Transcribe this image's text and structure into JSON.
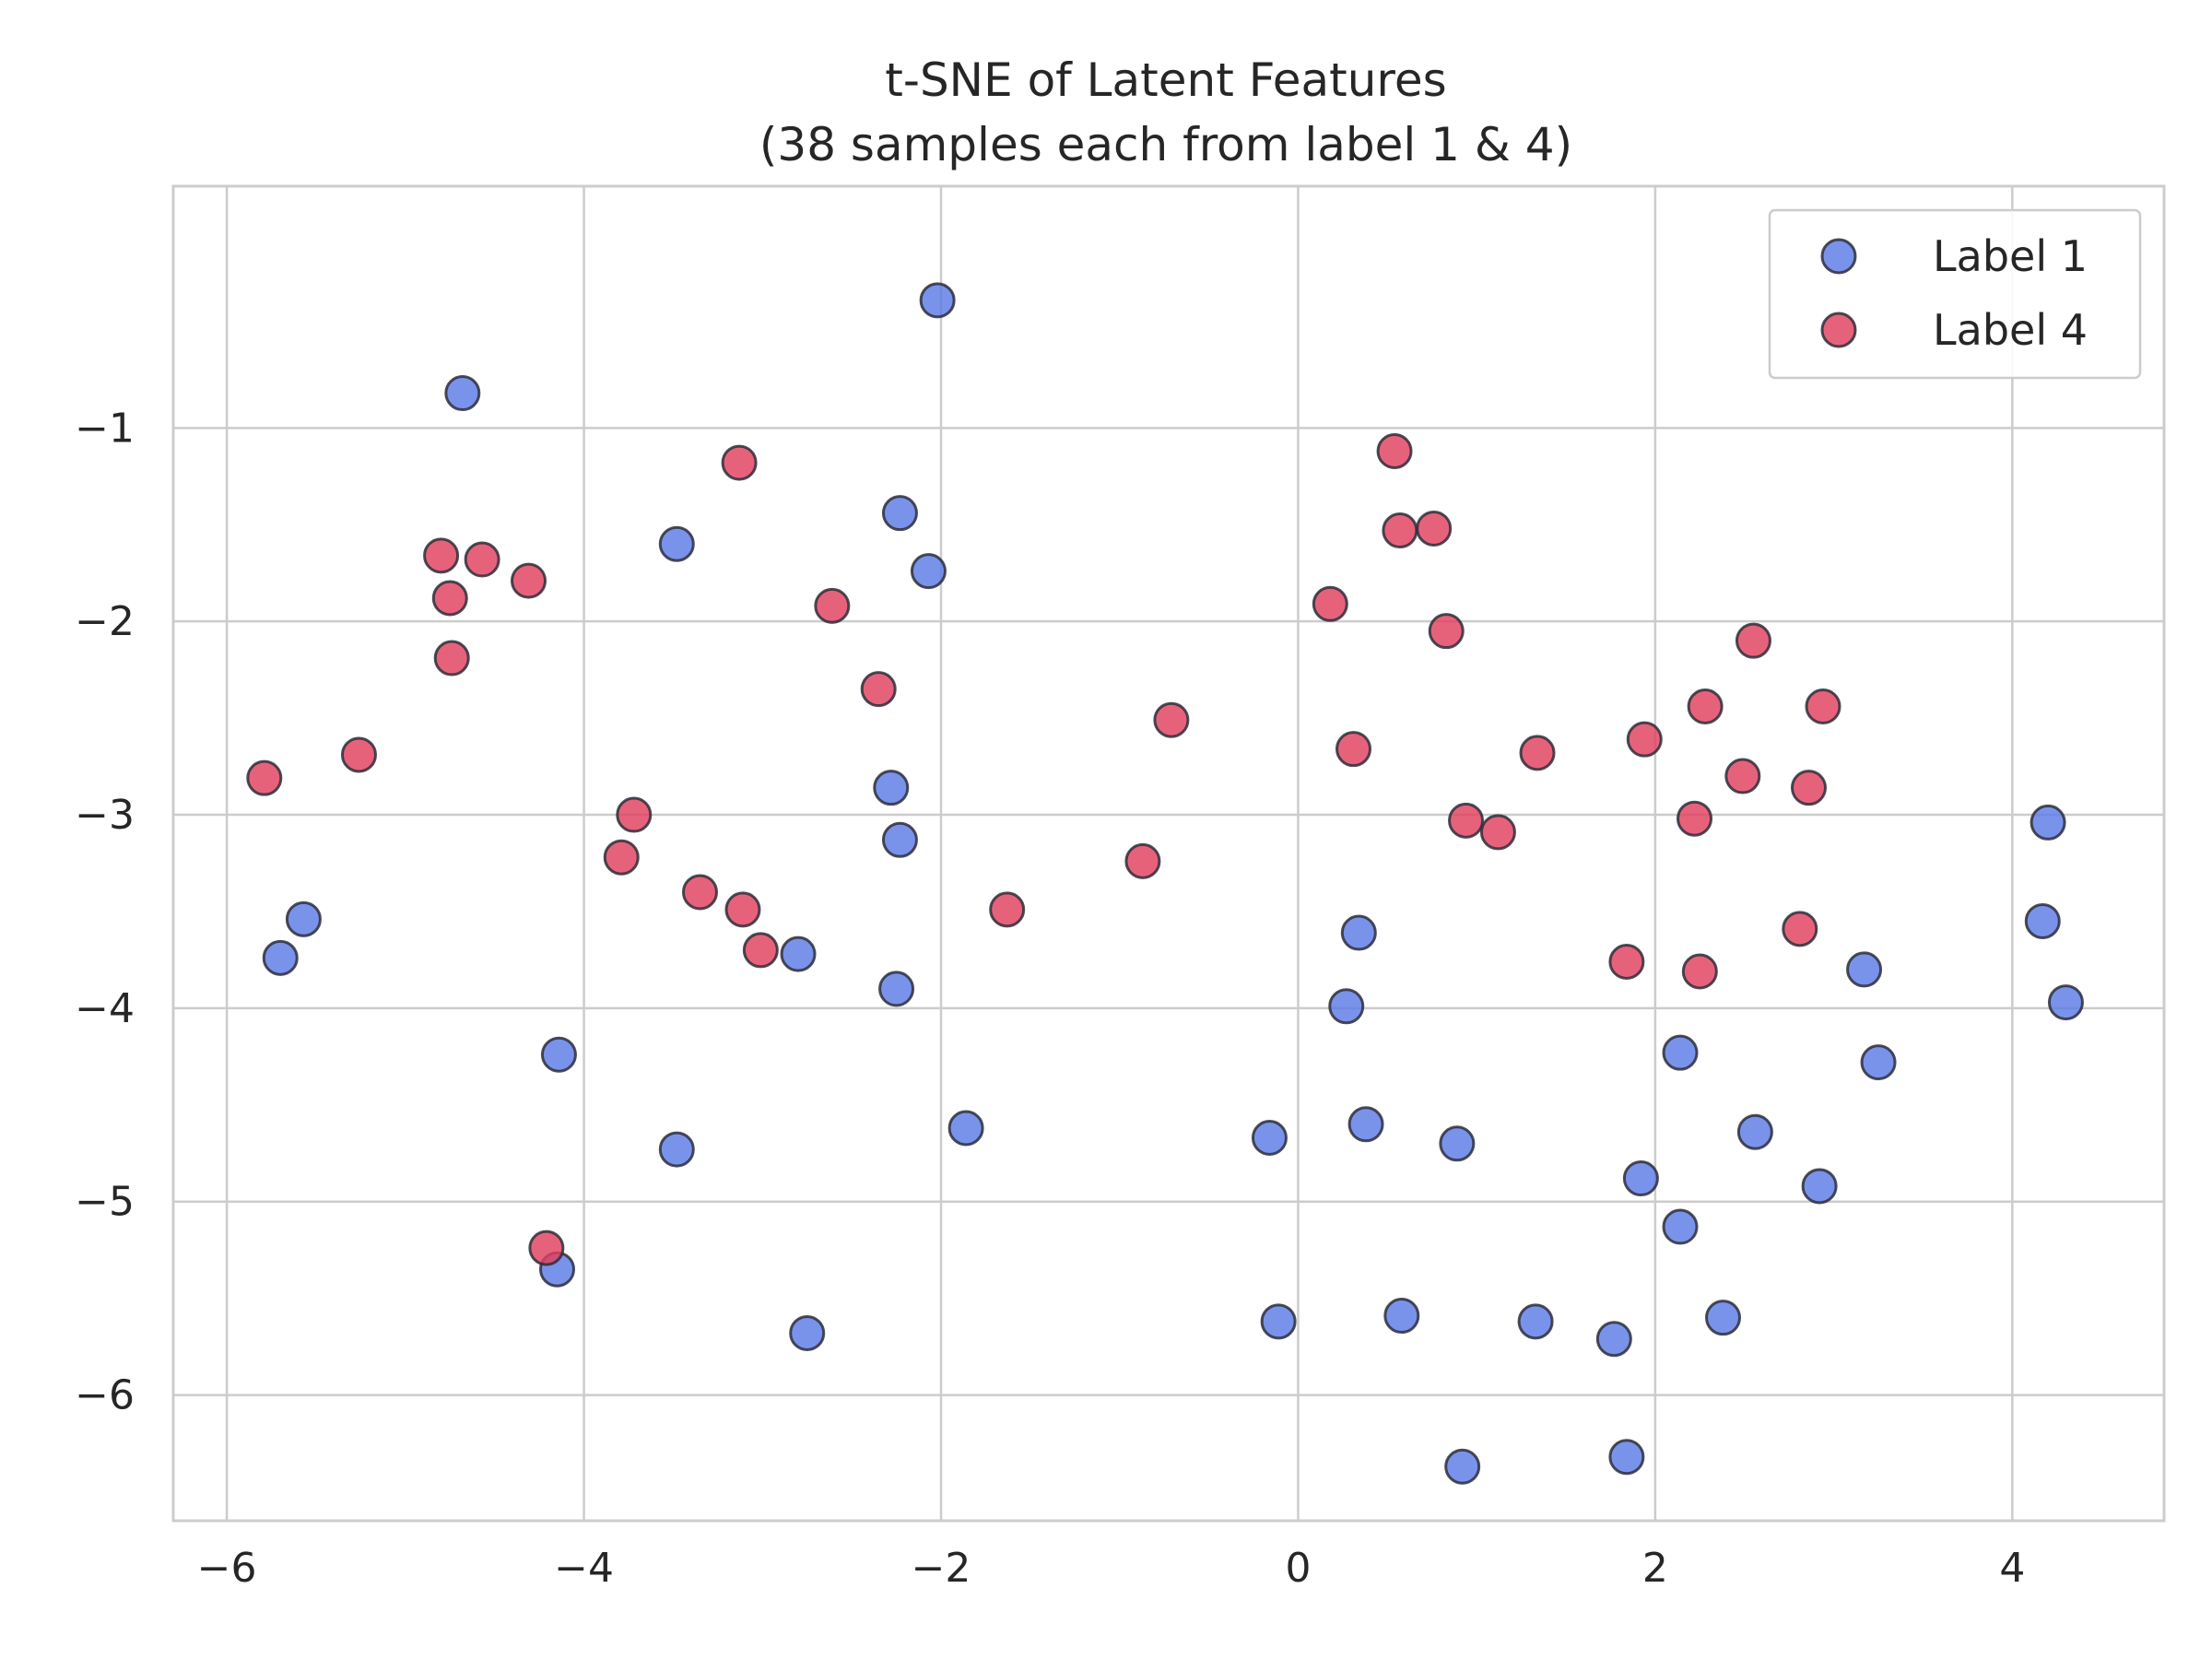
{
  "chart_data": {
    "type": "scatter",
    "title": "t-SNE of Latent Features",
    "subtitle": "(38 samples each from label 1 & 4)",
    "xlabel": "",
    "ylabel": "",
    "xlim": [
      -6.3,
      4.85
    ],
    "ylim": [
      -6.65,
      0.25
    ],
    "xticks": [
      -6,
      -4,
      -2,
      0,
      2,
      4
    ],
    "yticks": [
      -1,
      -2,
      -3,
      -4,
      -5,
      -6
    ],
    "xtick_labels": [
      "−6",
      "−4",
      "−2",
      "0",
      "2",
      "4"
    ],
    "ytick_labels": [
      "−1",
      "−2",
      "−3",
      "−4",
      "−5",
      "−6"
    ],
    "grid": true,
    "legend_position": "top-right",
    "series": [
      {
        "name": "Label 1",
        "color": "#5b7be6",
        "points": [
          [
            -2.02,
            -0.34
          ],
          [
            -4.68,
            -0.82
          ],
          [
            -3.48,
            -1.6
          ],
          [
            -2.23,
            -1.44
          ],
          [
            -2.07,
            -1.74
          ],
          [
            -2.28,
            -2.86
          ],
          [
            -2.23,
            -3.13
          ],
          [
            -5.57,
            -3.54
          ],
          [
            -5.7,
            -3.74
          ],
          [
            -2.8,
            -3.72
          ],
          [
            -2.25,
            -3.9
          ],
          [
            -4.14,
            -4.24
          ],
          [
            -3.48,
            -4.73
          ],
          [
            -1.86,
            -4.62
          ],
          [
            -4.15,
            -5.35
          ],
          [
            -2.75,
            -5.68
          ],
          [
            -0.16,
            -4.67
          ],
          [
            -0.11,
            -5.62
          ],
          [
            0.34,
            -3.61
          ],
          [
            0.27,
            -3.99
          ],
          [
            0.38,
            -4.6
          ],
          [
            0.89,
            -4.7
          ],
          [
            0.58,
            -5.59
          ],
          [
            1.33,
            -5.62
          ],
          [
            1.77,
            -5.71
          ],
          [
            0.92,
            -6.37
          ],
          [
            1.84,
            -6.32
          ],
          [
            1.92,
            -4.88
          ],
          [
            2.14,
            -4.23
          ],
          [
            2.14,
            -5.13
          ],
          [
            2.38,
            -5.6
          ],
          [
            2.56,
            -4.64
          ],
          [
            2.92,
            -4.92
          ],
          [
            3.17,
            -3.8
          ],
          [
            3.25,
            -4.28
          ],
          [
            4.2,
            -3.04
          ],
          [
            4.17,
            -3.55
          ],
          [
            4.3,
            -3.97
          ]
        ]
      },
      {
        "name": "Label 4",
        "color": "#e0405e",
        "points": [
          [
            -3.13,
            -1.18
          ],
          [
            -4.8,
            -1.66
          ],
          [
            -4.57,
            -1.68
          ],
          [
            -4.31,
            -1.79
          ],
          [
            -4.75,
            -1.88
          ],
          [
            -4.74,
            -2.19
          ],
          [
            -2.61,
            -1.92
          ],
          [
            -2.35,
            -2.35
          ],
          [
            -5.79,
            -2.81
          ],
          [
            -5.26,
            -2.69
          ],
          [
            -3.72,
            -3.0
          ],
          [
            -3.79,
            -3.22
          ],
          [
            -3.35,
            -3.4
          ],
          [
            -3.11,
            -3.49
          ],
          [
            -3.01,
            -3.7
          ],
          [
            -1.63,
            -3.49
          ],
          [
            -0.87,
            -3.24
          ],
          [
            -0.71,
            -2.51
          ],
          [
            0.54,
            -1.12
          ],
          [
            0.57,
            -1.53
          ],
          [
            0.76,
            -1.52
          ],
          [
            0.18,
            -1.91
          ],
          [
            0.83,
            -2.05
          ],
          [
            0.31,
            -2.66
          ],
          [
            0.94,
            -3.03
          ],
          [
            1.12,
            -3.09
          ],
          [
            1.34,
            -2.68
          ],
          [
            1.94,
            -2.61
          ],
          [
            2.22,
            -3.02
          ],
          [
            2.28,
            -2.44
          ],
          [
            2.55,
            -2.1
          ],
          [
            2.49,
            -2.8
          ],
          [
            2.94,
            -2.44
          ],
          [
            2.86,
            -2.86
          ],
          [
            2.81,
            -3.59
          ],
          [
            1.84,
            -3.76
          ],
          [
            2.25,
            -3.81
          ],
          [
            -4.21,
            -5.24
          ]
        ]
      }
    ]
  }
}
